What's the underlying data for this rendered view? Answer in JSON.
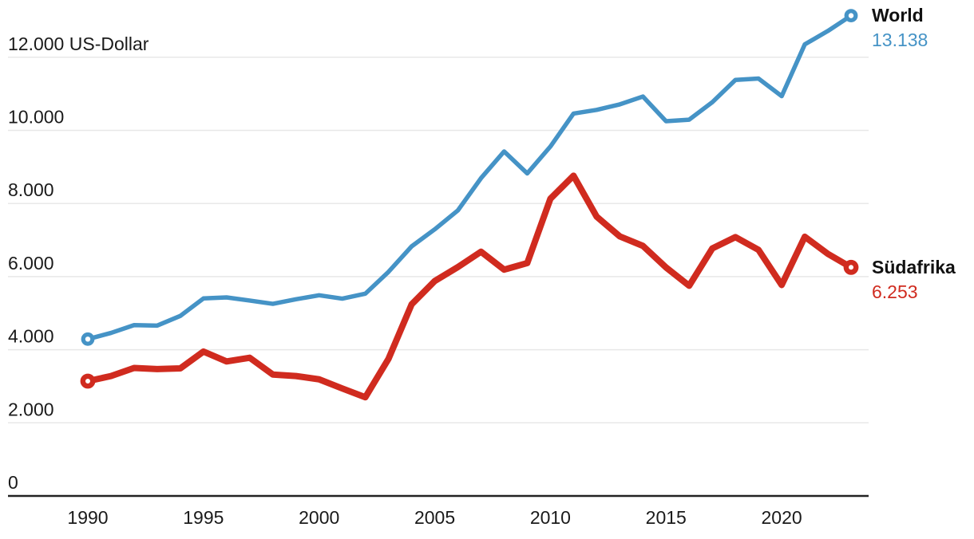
{
  "page": {
    "background": "#ffffff"
  },
  "chart_data": {
    "type": "line",
    "title": "",
    "unit": "US-Dollar",
    "x": [
      1990,
      1991,
      1992,
      1993,
      1994,
      1995,
      1996,
      1997,
      1998,
      1999,
      2000,
      2001,
      2002,
      2003,
      2004,
      2005,
      2006,
      2007,
      2008,
      2009,
      2010,
      2011,
      2012,
      2013,
      2014,
      2015,
      2016,
      2017,
      2018,
      2019,
      2020,
      2021,
      2022,
      2023
    ],
    "x_ticks": [
      {
        "value": 1990,
        "label": "1990"
      },
      {
        "value": 1995,
        "label": "1995"
      },
      {
        "value": 2000,
        "label": "2000"
      },
      {
        "value": 2005,
        "label": "2005"
      },
      {
        "value": 2010,
        "label": "2010"
      },
      {
        "value": 2015,
        "label": "2015"
      },
      {
        "value": 2020,
        "label": "2020"
      }
    ],
    "y_ticks": [
      {
        "value": 0,
        "label": "0"
      },
      {
        "value": 2000,
        "label": "2.000"
      },
      {
        "value": 4000,
        "label": "4.000"
      },
      {
        "value": 6000,
        "label": "6.000"
      },
      {
        "value": 8000,
        "label": "8.000"
      },
      {
        "value": 10000,
        "label": "10.000"
      },
      {
        "value": 12000,
        "label": "12.000 US-Dollar"
      }
    ],
    "ylim": [
      0,
      13600
    ],
    "xlim": [
      1990,
      2023
    ],
    "grid": "horizontal",
    "legend_position": "end-of-line",
    "colors": {
      "grid": "#e8e8e8",
      "axis": "#222222",
      "text": "#1a1a1a"
    },
    "series": [
      {
        "name": "World",
        "color": "#4593c6",
        "end_value_label": "13.138",
        "line_width": 5.5,
        "values": [
          4290,
          4459,
          4672,
          4660,
          4925,
          5403,
          5431,
          5345,
          5255,
          5380,
          5490,
          5397,
          5533,
          6130,
          6827,
          7294,
          7810,
          8692,
          9423,
          8823,
          9558,
          10460,
          10561,
          10711,
          10926,
          10250,
          10292,
          10770,
          11379,
          11417,
          10936,
          12352,
          12720,
          13138
        ]
      },
      {
        "name": "Südafrika",
        "color": "#d02b1f",
        "end_value_label": "6.253",
        "line_width": 8,
        "values": [
          3140,
          3280,
          3500,
          3470,
          3490,
          3950,
          3680,
          3780,
          3320,
          3280,
          3190,
          2940,
          2700,
          3750,
          5240,
          5880,
          6260,
          6680,
          6190,
          6370,
          8130,
          8760,
          7640,
          7100,
          6840,
          6250,
          5750,
          6770,
          7080,
          6730,
          5770,
          7090,
          6620,
          6253
        ]
      }
    ]
  }
}
